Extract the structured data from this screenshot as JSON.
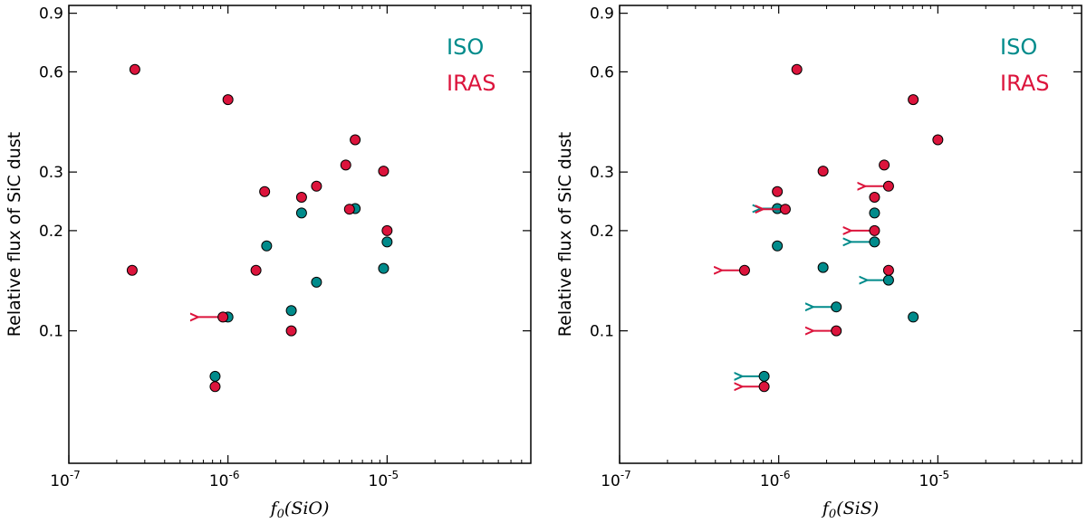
{
  "chart_data": [
    {
      "type": "scatter",
      "title": "",
      "xlabel": "f_0(SiO)",
      "xlabel_parts": {
        "f": "f",
        "sub": "0",
        "rest": "(SiO)"
      },
      "ylabel": "Relative flux of SiC dust",
      "xscale": "log",
      "yscale": "log",
      "xlim": [
        1e-07,
        8e-05
      ],
      "ylim": [
        0.04,
        0.95
      ],
      "xticks": [
        {
          "value": 1e-07,
          "base": "10",
          "exp": "-7"
        },
        {
          "value": 1e-06,
          "base": "10",
          "exp": "-6"
        },
        {
          "value": 1e-05,
          "base": "10",
          "exp": "-5"
        }
      ],
      "yticks": [
        {
          "value": 0.1,
          "label": "0.1"
        },
        {
          "value": 0.2,
          "label": "0.2"
        },
        {
          "value": 0.3,
          "label": "0.3"
        },
        {
          "value": 0.6,
          "label": "0.6"
        },
        {
          "value": 0.9,
          "label": "0.9"
        }
      ],
      "legend": {
        "position": "top-right",
        "entries": [
          {
            "name": "ISO",
            "color": "#008b8b"
          },
          {
            "name": "IRAS",
            "color": "#dc143c"
          }
        ]
      },
      "series": [
        {
          "name": "ISO",
          "color": "#008b8b",
          "points": [
            {
              "x": 1e-06,
              "y": 0.11
            },
            {
              "x": 8.3e-07,
              "y": 0.073
            },
            {
              "x": 1.75e-06,
              "y": 0.18
            },
            {
              "x": 2.5e-06,
              "y": 0.115
            },
            {
              "x": 2.9e-06,
              "y": 0.226
            },
            {
              "x": 3.6e-06,
              "y": 0.14
            },
            {
              "x": 6.3e-06,
              "y": 0.233
            },
            {
              "x": 9.5e-06,
              "y": 0.154
            },
            {
              "x": 1e-05,
              "y": 0.185
            }
          ]
        },
        {
          "name": "IRAS",
          "color": "#dc143c",
          "points": [
            {
              "x": 2.6e-07,
              "y": 0.61
            },
            {
              "x": 2.5e-07,
              "y": 0.152
            },
            {
              "x": 1e-06,
              "y": 0.495
            },
            {
              "x": 9.3e-07,
              "y": 0.11,
              "upper_limit": true,
              "arrow_to": 6.5e-07
            },
            {
              "x": 8.3e-07,
              "y": 0.068
            },
            {
              "x": 1.5e-06,
              "y": 0.152
            },
            {
              "x": 1.7e-06,
              "y": 0.262
            },
            {
              "x": 2.5e-06,
              "y": 0.1
            },
            {
              "x": 2.9e-06,
              "y": 0.252
            },
            {
              "x": 3.6e-06,
              "y": 0.272
            },
            {
              "x": 5.5e-06,
              "y": 0.315
            },
            {
              "x": 5.8e-06,
              "y": 0.232
            },
            {
              "x": 6.3e-06,
              "y": 0.375
            },
            {
              "x": 9.5e-06,
              "y": 0.302
            },
            {
              "x": 1e-05,
              "y": 0.2
            }
          ]
        }
      ]
    },
    {
      "type": "scatter",
      "title": "",
      "xlabel": "f_0(SiS)",
      "xlabel_parts": {
        "f": "f",
        "sub": "0",
        "rest": "(SiS)"
      },
      "ylabel": "Relative flux of SiC dust",
      "xscale": "log",
      "yscale": "log",
      "xlim": [
        1e-07,
        8e-05
      ],
      "ylim": [
        0.04,
        0.95
      ],
      "xticks": [
        {
          "value": 1e-07,
          "base": "10",
          "exp": "-7"
        },
        {
          "value": 1e-06,
          "base": "10",
          "exp": "-6"
        },
        {
          "value": 1e-05,
          "base": "10",
          "exp": "-5"
        }
      ],
      "yticks": [
        {
          "value": 0.1,
          "label": "0.1"
        },
        {
          "value": 0.2,
          "label": "0.2"
        },
        {
          "value": 0.3,
          "label": "0.3"
        },
        {
          "value": 0.6,
          "label": "0.6"
        },
        {
          "value": 0.9,
          "label": "0.9"
        }
      ],
      "legend": {
        "position": "top-right",
        "entries": [
          {
            "name": "ISO",
            "color": "#008b8b"
          },
          {
            "name": "IRAS",
            "color": "#dc143c"
          }
        ]
      },
      "series": [
        {
          "name": "ISO",
          "color": "#008b8b",
          "points": [
            {
              "x": 9.8e-07,
              "y": 0.233,
              "upper_limit": true,
              "arrow_to": 7.7e-07
            },
            {
              "x": 9.8e-07,
              "y": 0.18
            },
            {
              "x": 1.9e-06,
              "y": 0.155
            },
            {
              "x": 2.3e-06,
              "y": 0.118,
              "upper_limit": true,
              "arrow_to": 1.65e-06
            },
            {
              "x": 4e-06,
              "y": 0.226
            },
            {
              "x": 4e-06,
              "y": 0.185,
              "upper_limit": true,
              "arrow_to": 2.85e-06
            },
            {
              "x": 4.9e-06,
              "y": 0.142,
              "upper_limit": true,
              "arrow_to": 3.6e-06
            },
            {
              "x": 7e-06,
              "y": 0.11
            },
            {
              "x": 8.1e-07,
              "y": 0.073,
              "upper_limit": true,
              "arrow_to": 5.9e-07
            }
          ]
        },
        {
          "name": "IRAS",
          "color": "#dc143c",
          "points": [
            {
              "x": 1.3e-06,
              "y": 0.61
            },
            {
              "x": 7e-06,
              "y": 0.495
            },
            {
              "x": 1e-05,
              "y": 0.375
            },
            {
              "x": 1.9e-06,
              "y": 0.302
            },
            {
              "x": 4.6e-06,
              "y": 0.315
            },
            {
              "x": 4.9e-06,
              "y": 0.272,
              "upper_limit": true,
              "arrow_to": 3.5e-06
            },
            {
              "x": 9.8e-07,
              "y": 0.262
            },
            {
              "x": 4e-06,
              "y": 0.252
            },
            {
              "x": 1.1e-06,
              "y": 0.232,
              "upper_limit": true,
              "arrow_to": 8e-07
            },
            {
              "x": 4e-06,
              "y": 0.2,
              "upper_limit": true,
              "arrow_to": 2.85e-06
            },
            {
              "x": 4.9e-06,
              "y": 0.152
            },
            {
              "x": 6.1e-07,
              "y": 0.152,
              "upper_limit": true,
              "arrow_to": 4.4e-07
            },
            {
              "x": 2.3e-06,
              "y": 0.1,
              "upper_limit": true,
              "arrow_to": 1.65e-06
            },
            {
              "x": 8.1e-07,
              "y": 0.068,
              "upper_limit": true,
              "arrow_to": 5.9e-07
            }
          ]
        }
      ]
    }
  ]
}
